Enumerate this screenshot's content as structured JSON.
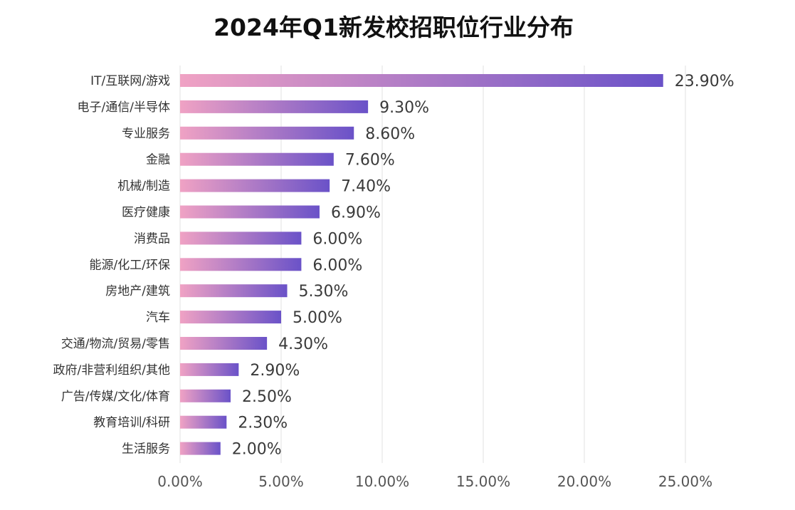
{
  "chart_data": {
    "type": "bar",
    "orientation": "horizontal",
    "title": "2024年Q1新发校招职位行业分布",
    "categories": [
      "IT/互联网/游戏",
      "电子/通信/半导体",
      "专业服务",
      "金融",
      "机械/制造",
      "医疗健康",
      "消费品",
      "能源/化工/环保",
      "房地产/建筑",
      "汽车",
      "交通/物流/贸易/零售",
      "政府/非营利组织/其他",
      "广告/传媒/文化/体育",
      "教育培训/科研",
      "生活服务"
    ],
    "values": [
      23.9,
      9.3,
      8.6,
      7.6,
      7.4,
      6.9,
      6.0,
      6.0,
      5.3,
      5.0,
      4.3,
      2.9,
      2.5,
      2.3,
      2.0
    ],
    "value_labels": [
      "23.90%",
      "9.30%",
      "8.60%",
      "7.60%",
      "7.40%",
      "6.90%",
      "6.00%",
      "6.00%",
      "5.30%",
      "5.00%",
      "4.30%",
      "2.90%",
      "2.50%",
      "2.30%",
      "2.00%"
    ],
    "xticks": [
      0,
      5,
      10,
      15,
      20,
      25
    ],
    "xtick_labels": [
      "0.00%",
      "5.00%",
      "10.00%",
      "15.00%",
      "20.00%",
      "25.00%"
    ],
    "xlim": [
      0,
      25
    ],
    "xlabel": "",
    "ylabel": "",
    "grid": "vertical",
    "legend": "none",
    "colors": {
      "bar_start": "#f0a2c4",
      "bar_end": "#6a52c8",
      "grid": "#e6e6e6"
    }
  }
}
